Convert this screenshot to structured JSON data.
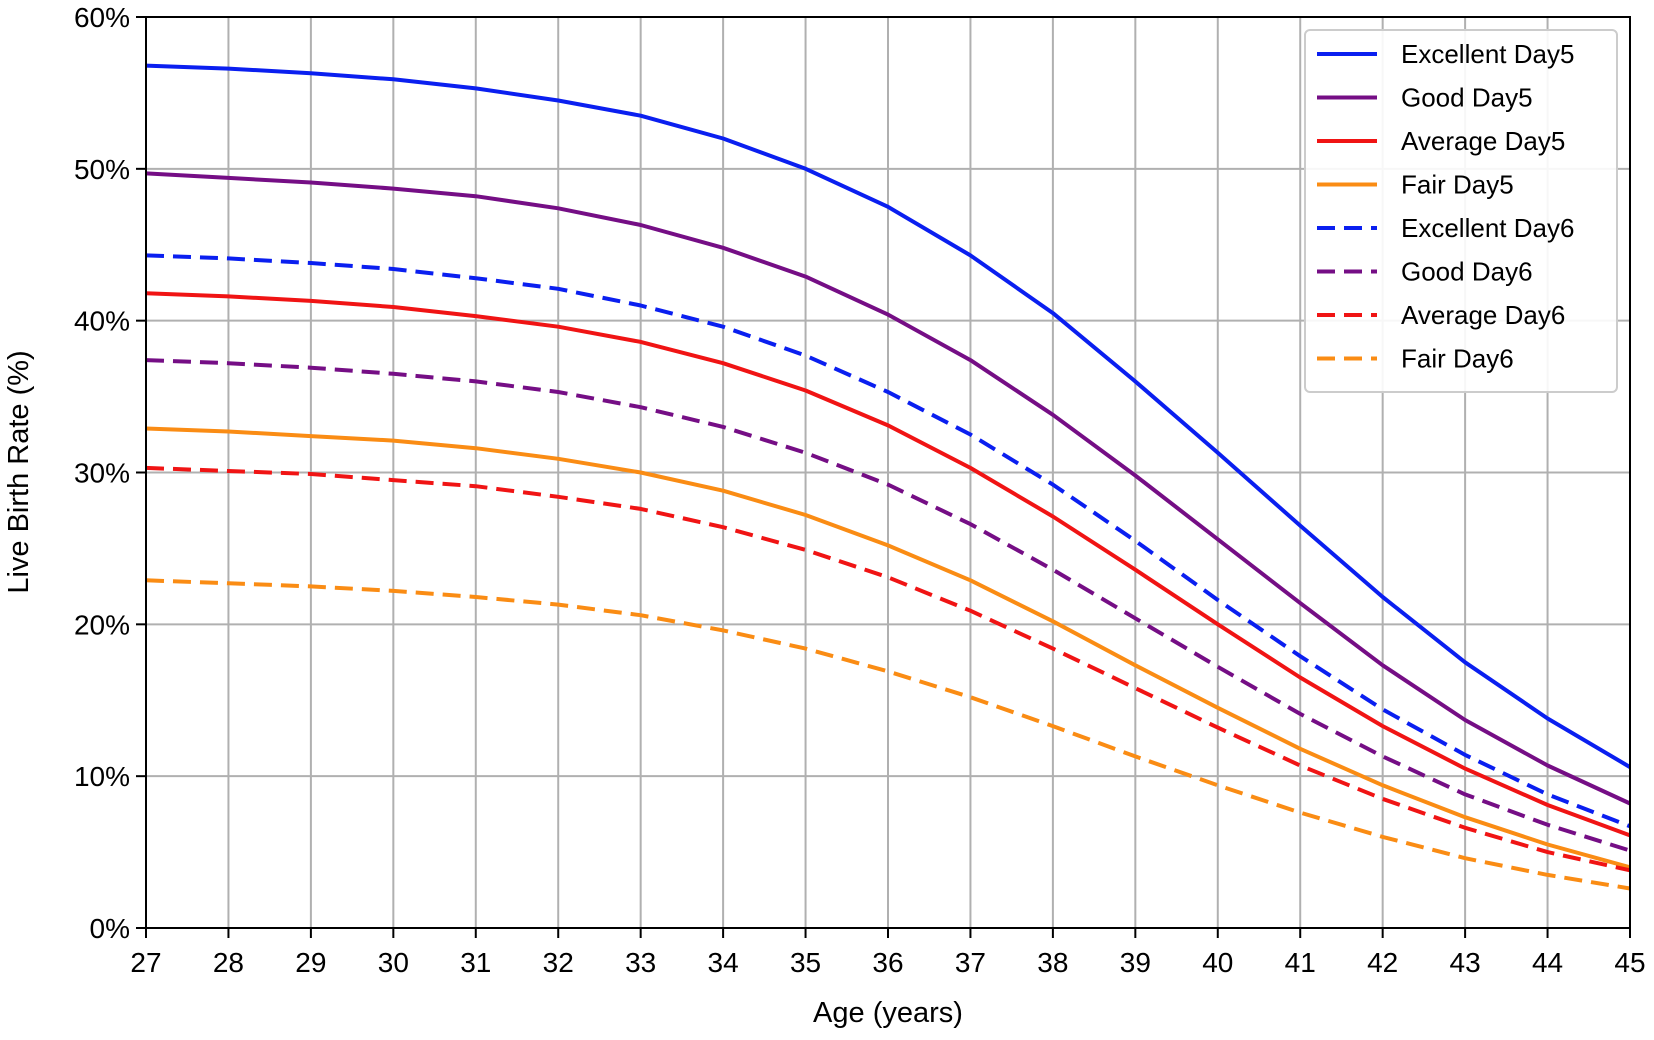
{
  "chart_data": {
    "type": "line",
    "title": "",
    "xlabel": "Age (years)",
    "ylabel": "Live Birth Rate (%)",
    "x": [
      27,
      28,
      29,
      30,
      31,
      32,
      33,
      34,
      35,
      36,
      37,
      38,
      39,
      40,
      41,
      42,
      43,
      44,
      45
    ],
    "xlim": [
      27,
      45
    ],
    "ylim": [
      0,
      60
    ],
    "x_ticks": [
      "27",
      "28",
      "29",
      "30",
      "31",
      "32",
      "33",
      "34",
      "35",
      "36",
      "37",
      "38",
      "39",
      "40",
      "41",
      "42",
      "43",
      "44",
      "45"
    ],
    "y_ticks": [
      {
        "value": 0,
        "label": "0%"
      },
      {
        "value": 10,
        "label": "10%"
      },
      {
        "value": 20,
        "label": "20%"
      },
      {
        "value": 30,
        "label": "30%"
      },
      {
        "value": 40,
        "label": "40%"
      },
      {
        "value": 50,
        "label": "50%"
      },
      {
        "value": 60,
        "label": "60%"
      }
    ],
    "grid": true,
    "legend_position": "top-right",
    "series": [
      {
        "name": "Excellent Day5",
        "color": "#0a1ff0",
        "style": "solid",
        "values": [
          56.8,
          56.6,
          56.3,
          55.9,
          55.3,
          54.5,
          53.5,
          52.0,
          50.0,
          47.5,
          44.3,
          40.5,
          36.0,
          31.3,
          26.5,
          21.8,
          17.5,
          13.8,
          10.6
        ]
      },
      {
        "name": "Good Day5",
        "color": "#750e85",
        "style": "solid",
        "values": [
          49.7,
          49.4,
          49.1,
          48.7,
          48.2,
          47.4,
          46.3,
          44.8,
          42.9,
          40.4,
          37.4,
          33.8,
          29.8,
          25.6,
          21.4,
          17.3,
          13.7,
          10.7,
          8.2
        ]
      },
      {
        "name": "Average Day5",
        "color": "#f01414",
        "style": "solid",
        "values": [
          41.8,
          41.6,
          41.3,
          40.9,
          40.3,
          39.6,
          38.6,
          37.2,
          35.4,
          33.1,
          30.3,
          27.1,
          23.6,
          20.0,
          16.5,
          13.3,
          10.5,
          8.1,
          6.1
        ]
      },
      {
        "name": "Fair Day5",
        "color": "#fa8c14",
        "style": "solid",
        "values": [
          32.9,
          32.7,
          32.4,
          32.1,
          31.6,
          30.9,
          30.0,
          28.8,
          27.2,
          25.2,
          22.9,
          20.2,
          17.3,
          14.5,
          11.8,
          9.4,
          7.3,
          5.5,
          4.0
        ]
      },
      {
        "name": "Excellent Day6",
        "color": "#0a1ff0",
        "style": "dashed",
        "values": [
          44.3,
          44.1,
          43.8,
          43.4,
          42.8,
          42.1,
          41.0,
          39.6,
          37.7,
          35.3,
          32.5,
          29.2,
          25.5,
          21.6,
          17.9,
          14.4,
          11.4,
          8.8,
          6.7
        ]
      },
      {
        "name": "Good Day6",
        "color": "#750e85",
        "style": "dashed",
        "values": [
          37.4,
          37.2,
          36.9,
          36.5,
          36.0,
          35.3,
          34.3,
          33.0,
          31.3,
          29.2,
          26.6,
          23.6,
          20.4,
          17.2,
          14.1,
          11.3,
          8.8,
          6.8,
          5.1
        ]
      },
      {
        "name": "Average Day6",
        "color": "#f01414",
        "style": "dashed",
        "values": [
          30.3,
          30.1,
          29.9,
          29.5,
          29.1,
          28.4,
          27.6,
          26.4,
          24.9,
          23.1,
          20.9,
          18.4,
          15.8,
          13.2,
          10.7,
          8.5,
          6.6,
          5.0,
          3.8
        ]
      },
      {
        "name": "Fair Day6",
        "color": "#fa8c14",
        "style": "dashed",
        "values": [
          22.9,
          22.7,
          22.5,
          22.2,
          21.8,
          21.3,
          20.6,
          19.6,
          18.4,
          16.9,
          15.2,
          13.3,
          11.3,
          9.4,
          7.6,
          6.0,
          4.6,
          3.5,
          2.6
        ]
      }
    ]
  }
}
